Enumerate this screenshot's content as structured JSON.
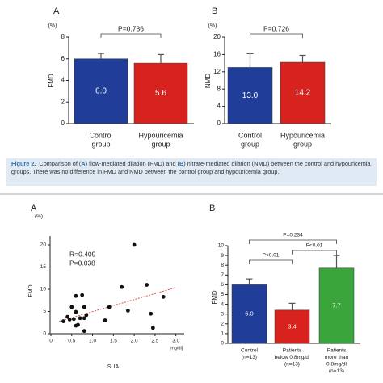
{
  "chart_data": [
    {
      "type": "bar",
      "panel": "A",
      "ylabel": "FMD",
      "yunit": "(%)",
      "categories": [
        [
          "Control",
          "group"
        ],
        [
          "Hypouricemia",
          "group"
        ]
      ],
      "values": [
        6.0,
        5.6
      ],
      "value_labels": [
        "6.0",
        "5.6"
      ],
      "errors": [
        0.5,
        0.8
      ],
      "colors": [
        "#1f3d99",
        "#d8221e"
      ],
      "ylim": [
        0,
        8
      ],
      "yticks": [
        0,
        2,
        4,
        6,
        8
      ],
      "annotations": [
        "P=0.736"
      ]
    },
    {
      "type": "bar",
      "panel": "B",
      "ylabel": "NMD",
      "yunit": "(%)",
      "categories": [
        [
          "Control",
          "group"
        ],
        [
          "Hypouricemia",
          "group"
        ]
      ],
      "values": [
        13.0,
        14.2
      ],
      "value_labels": [
        "13.0",
        "14.2"
      ],
      "errors": [
        3.2,
        1.6
      ],
      "colors": [
        "#1f3d99",
        "#d8221e"
      ],
      "ylim": [
        0,
        20
      ],
      "yticks": [
        0,
        4,
        8,
        12,
        16,
        20
      ],
      "annotations": [
        "P=0.726"
      ]
    },
    {
      "type": "scatter",
      "panel": "A",
      "ylabel": "FMD",
      "yunit": "(%)",
      "xlabel": "SUA",
      "xunit": "[mg/dl]",
      "x": [
        0.3,
        0.4,
        0.45,
        0.5,
        0.55,
        0.6,
        0.6,
        0.6,
        0.65,
        0.7,
        0.75,
        0.8,
        0.8,
        0.8,
        0.85,
        1.3,
        1.4,
        1.7,
        1.85,
        2.0,
        2.3,
        2.4,
        2.45,
        2.7
      ],
      "y": [
        2.8,
        3.8,
        3.2,
        6.0,
        3.3,
        8.5,
        4.9,
        1.8,
        2.0,
        3.5,
        8.7,
        6.0,
        3.5,
        0.6,
        4.2,
        3.0,
        6.0,
        10.5,
        5.2,
        20.0,
        11.0,
        4.5,
        1.3,
        8.3
      ],
      "color": "#111111",
      "trendline": {
        "x": [
          0.2,
          3.0
        ],
        "y": [
          2.8,
          10.4
        ],
        "color": "#d9534f"
      },
      "xlim": [
        0,
        3.2
      ],
      "xticks": [
        0,
        0.5,
        {
          "value": 1,
          "label": "1.0"
        },
        1.5,
        {
          "value": 2,
          "label": "2.0"
        },
        2.5,
        {
          "value": 3,
          "label": "3.0"
        }
      ],
      "ylim": [
        0,
        22
      ],
      "yticks": [
        0,
        5,
        10,
        15,
        20
      ],
      "annotations": [
        "R=0.409",
        "P=0.038"
      ]
    },
    {
      "type": "bar",
      "panel": "B",
      "ylabel": "FMD",
      "categories": [
        [
          "Control",
          "(n=13)"
        ],
        [
          "Patients",
          "below 0.8mg/dl",
          "(n=13)"
        ],
        [
          "Patients",
          "more than",
          "0.8mg/dl",
          "(n=13)"
        ]
      ],
      "values": [
        6.0,
        3.4,
        7.7
      ],
      "value_labels": [
        "6.0",
        "3.4",
        "7.7"
      ],
      "errors": [
        0.6,
        0.7,
        1.3
      ],
      "colors": [
        "#1f3d99",
        "#d8221e",
        "#3aa53a"
      ],
      "ylim": [
        0,
        10
      ],
      "yticks": [
        0,
        1,
        2,
        3,
        4,
        5,
        6,
        7,
        8,
        9,
        10
      ],
      "annotations": [
        "P<0.01",
        "P<0.01",
        "P=0.234"
      ]
    }
  ],
  "caption": {
    "label": "Figure 2.",
    "parts": [
      "Comparison of (",
      "A",
      ") flow-mediated dilation (FMD) and (",
      "B",
      ") nitrate-mediated dilation (NMD) between the control and hypouricemia groups. There was no difference in FMD and NMD between the control group and hypouricemia group."
    ]
  }
}
